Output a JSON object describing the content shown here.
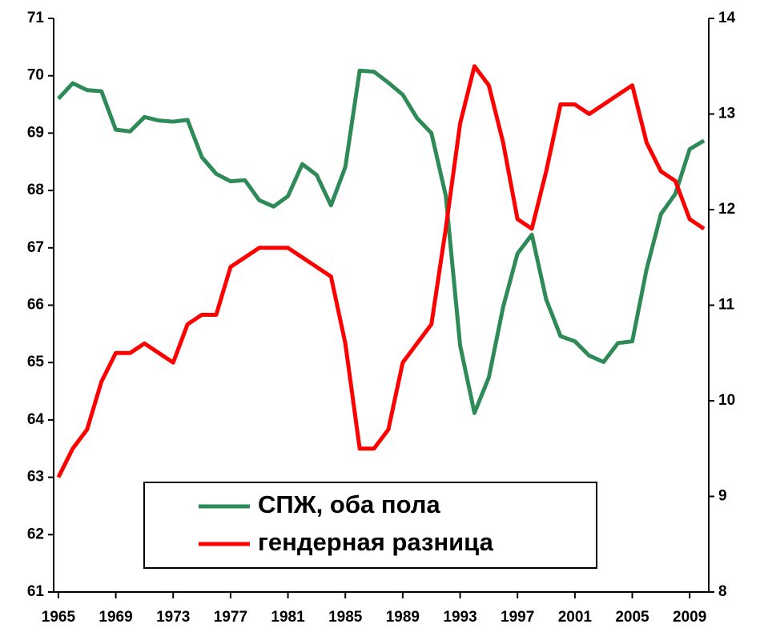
{
  "chart_data": {
    "type": "line",
    "x": [
      1965,
      1966,
      1967,
      1968,
      1969,
      1970,
      1971,
      1972,
      1973,
      1974,
      1975,
      1976,
      1977,
      1978,
      1979,
      1980,
      1981,
      1982,
      1983,
      1984,
      1985,
      1986,
      1987,
      1988,
      1989,
      1990,
      1991,
      1992,
      1993,
      1994,
      1995,
      1996,
      1997,
      1998,
      1999,
      2000,
      2001,
      2002,
      2003,
      2004,
      2005,
      2006,
      2007,
      2008,
      2009,
      2010
    ],
    "xlim": [
      1964.67,
      2010.33
    ],
    "xticks": [
      1965,
      1969,
      1973,
      1977,
      1981,
      1985,
      1989,
      1993,
      1997,
      2001,
      2005,
      2009
    ],
    "ylim": [
      61,
      71
    ],
    "yticks": [
      61,
      62,
      63,
      64,
      65,
      66,
      67,
      68,
      69,
      70,
      71
    ],
    "y2lim": [
      8,
      14
    ],
    "y2ticks": [
      8,
      9,
      10,
      11,
      12,
      13,
      14
    ],
    "series": [
      {
        "name": "СПЖ, оба пола",
        "color": "#2e8b57",
        "axis": "y",
        "values": [
          69.6,
          69.87,
          69.75,
          69.73,
          69.06,
          69.03,
          69.28,
          69.22,
          69.2,
          69.23,
          68.58,
          68.29,
          68.16,
          68.18,
          67.83,
          67.72,
          67.9,
          68.46,
          68.27,
          67.74,
          68.41,
          70.09,
          70.07,
          69.88,
          69.67,
          69.26,
          69.0,
          67.91,
          65.3,
          64.12,
          64.74,
          65.97,
          66.9,
          67.23,
          66.1,
          65.46,
          65.37,
          65.12,
          65.01,
          65.34,
          65.37,
          66.63,
          67.59,
          67.94,
          68.72,
          68.87
        ]
      },
      {
        "name": "гендерная разница",
        "color": "#ff0000",
        "axis": "y2",
        "values": [
          9.2,
          9.5,
          9.7,
          10.2,
          10.5,
          10.5,
          10.6,
          10.5,
          10.4,
          10.8,
          10.9,
          10.9,
          11.4,
          11.5,
          11.6,
          11.6,
          11.6,
          11.5,
          11.4,
          11.3,
          10.6,
          9.5,
          9.5,
          9.7,
          10.4,
          10.6,
          10.8,
          11.8,
          12.9,
          13.5,
          13.3,
          12.7,
          11.9,
          11.8,
          12.4,
          13.1,
          13.1,
          13.0,
          13.1,
          13.2,
          13.3,
          12.7,
          12.4,
          12.3,
          11.9,
          11.8
        ]
      }
    ]
  }
}
